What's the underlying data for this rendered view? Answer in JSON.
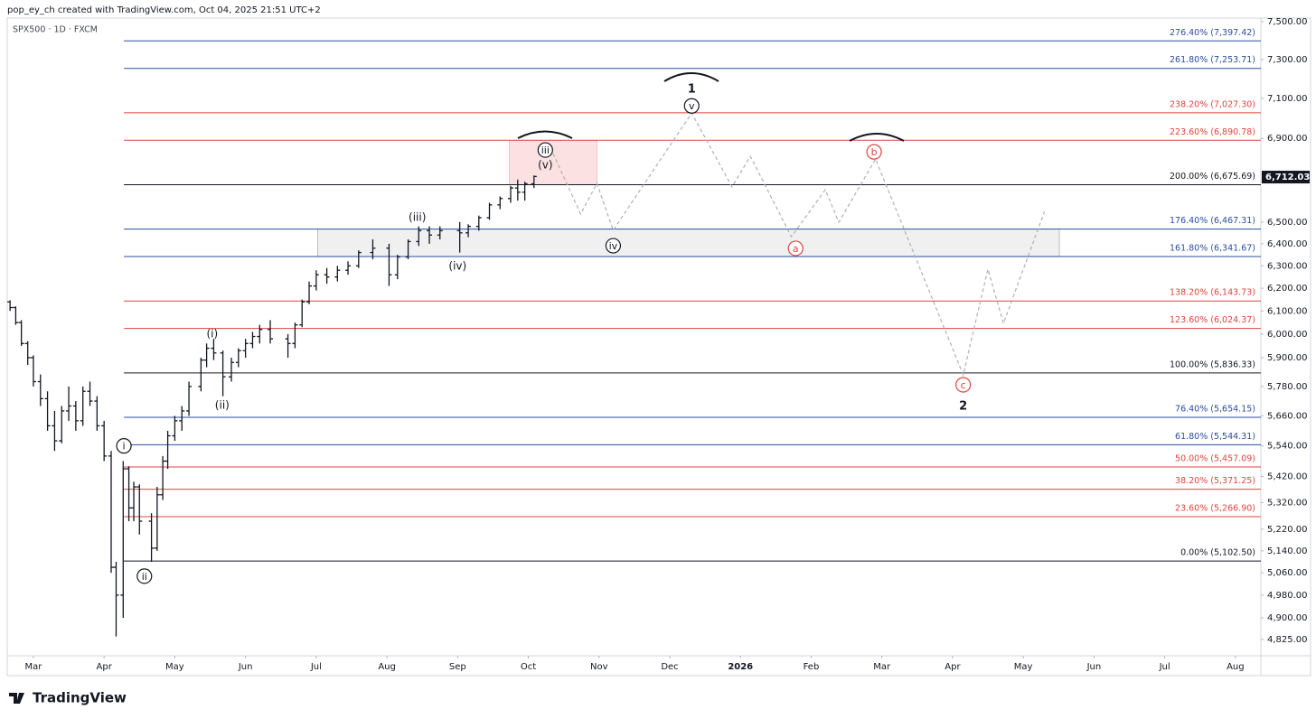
{
  "header": {
    "credit": "pop_ey_ch created with TradingView.com, Oct 04, 2025 21:51 UTC+2"
  },
  "footer": {
    "brand": "TradingView"
  },
  "chart_data": {
    "type": "ohlc",
    "title": "SPX500 · 1D · FXCM",
    "log_scale": true,
    "grid": false,
    "color": "#131722",
    "xlim": [
      1.63,
      19.36
    ],
    "ylim": [
      4769,
      7519
    ],
    "xticks": [
      {
        "value": 2,
        "label": "Mar"
      },
      {
        "value": 3,
        "label": "Apr"
      },
      {
        "value": 4,
        "label": "May"
      },
      {
        "value": 5,
        "label": "Jun"
      },
      {
        "value": 6,
        "label": "Jul"
      },
      {
        "value": 7,
        "label": "Aug"
      },
      {
        "value": 8,
        "label": "Sep"
      },
      {
        "value": 9,
        "label": "Oct"
      },
      {
        "value": 10,
        "label": "Nov"
      },
      {
        "value": 11,
        "label": "Dec"
      },
      {
        "value": 12,
        "label": "2026"
      },
      {
        "value": 13,
        "label": "Feb"
      },
      {
        "value": 14,
        "label": "Mar"
      },
      {
        "value": 15,
        "label": "Apr"
      },
      {
        "value": 16,
        "label": "May"
      },
      {
        "value": 17,
        "label": "Jun"
      },
      {
        "value": 18,
        "label": "Jul"
      },
      {
        "value": 19,
        "label": "Aug"
      }
    ],
    "yticks": [
      {
        "value": 7500,
        "label": "7,500.00"
      },
      {
        "value": 7300,
        "label": "7,300.00"
      },
      {
        "value": 7100,
        "label": "7,100.00"
      },
      {
        "value": 6900,
        "label": "6,900.00"
      },
      {
        "value": 6500,
        "label": "6,500.00"
      },
      {
        "value": 6400,
        "label": "6,400.00"
      },
      {
        "value": 6300,
        "label": "6,300.00"
      },
      {
        "value": 6200,
        "label": "6,200.00"
      },
      {
        "value": 6100,
        "label": "6,100.00"
      },
      {
        "value": 6000,
        "label": "6,000.00"
      },
      {
        "value": 5900,
        "label": "5,900.00"
      },
      {
        "value": 5780,
        "label": "5,780.00"
      },
      {
        "value": 5660,
        "label": "5,660.00"
      },
      {
        "value": 5540,
        "label": "5,540.00"
      },
      {
        "value": 5420,
        "label": "5,420.00"
      },
      {
        "value": 5320,
        "label": "5,320.00"
      },
      {
        "value": 5220,
        "label": "5,220.00"
      },
      {
        "value": 5140,
        "label": "5,140.00"
      },
      {
        "value": 5060,
        "label": "5,060.00"
      },
      {
        "value": 4980,
        "label": "4,980.00"
      },
      {
        "value": 4900,
        "label": "4,900.00"
      },
      {
        "value": 4825,
        "label": "4,825.00"
      }
    ],
    "last_price": {
      "value": 6712.03,
      "label": "6,712.03"
    },
    "x": [
      1.67,
      1.75,
      1.83,
      1.92,
      2.0,
      2.1,
      2.2,
      2.3,
      2.4,
      2.5,
      2.6,
      2.7,
      2.8,
      2.9,
      3.0,
      3.1,
      3.17,
      3.27,
      3.35,
      3.42,
      3.5,
      3.67,
      3.75,
      3.83,
      3.9,
      4.0,
      4.1,
      4.2,
      4.37,
      4.45,
      4.55,
      4.68,
      4.8,
      4.9,
      5.0,
      5.1,
      5.2,
      5.35,
      5.6,
      5.7,
      5.8,
      5.9,
      6.0,
      6.15,
      6.3,
      6.45,
      6.6,
      6.8,
      7.03,
      7.15,
      7.3,
      7.45,
      7.6,
      7.75,
      8.03,
      8.15,
      8.3,
      8.45,
      8.6,
      8.75,
      8.85,
      8.95,
      9.08
    ],
    "open": [
      6140,
      6115,
      6050,
      5960,
      5900,
      5800,
      5730,
      5620,
      5560,
      5680,
      5700,
      5640,
      5760,
      5720,
      5620,
      5500,
      5080,
      4980,
      5450,
      5300,
      5380,
      5250,
      5150,
      5350,
      5480,
      5580,
      5640,
      5680,
      5780,
      5890,
      5940,
      5920,
      5820,
      5880,
      5930,
      5960,
      5990,
      6020,
      5980,
      5960,
      6040,
      6140,
      6210,
      6260,
      6250,
      6280,
      6300,
      6360,
      6380,
      6260,
      6340,
      6410,
      6460,
      6440,
      6460,
      6450,
      6480,
      6520,
      6580,
      6610,
      6660,
      6640,
      6680
    ],
    "high": [
      6147,
      6120,
      6060,
      5970,
      5910,
      5830,
      5760,
      5680,
      5700,
      5780,
      5720,
      5780,
      5800,
      5740,
      5640,
      5520,
      5100,
      5480,
      5460,
      5400,
      5390,
      5280,
      5380,
      5500,
      5600,
      5660,
      5700,
      5800,
      5900,
      5960,
      5980,
      5930,
      5900,
      5940,
      5980,
      6010,
      6040,
      6060,
      6000,
      6050,
      6150,
      6230,
      6280,
      6290,
      6300,
      6320,
      6370,
      6420,
      6400,
      6350,
      6420,
      6480,
      6480,
      6480,
      6500,
      6490,
      6530,
      6590,
      6620,
      6670,
      6700,
      6690,
      6720
    ],
    "low": [
      6100,
      6040,
      5950,
      5870,
      5780,
      5700,
      5600,
      5520,
      5550,
      5640,
      5600,
      5620,
      5700,
      5600,
      5480,
      5060,
      4835,
      4900,
      5250,
      5250,
      5200,
      5100,
      5140,
      5330,
      5450,
      5560,
      5600,
      5660,
      5760,
      5860,
      5890,
      5740,
      5800,
      5860,
      5900,
      5940,
      5960,
      5960,
      5900,
      5940,
      6030,
      6130,
      6190,
      6220,
      6230,
      6260,
      6290,
      6330,
      6210,
      6240,
      6330,
      6390,
      6400,
      6420,
      6360,
      6430,
      6460,
      6510,
      6560,
      6590,
      6600,
      6600,
      6660
    ],
    "close": [
      6115,
      6050,
      5960,
      5900,
      5800,
      5730,
      5620,
      5560,
      5680,
      5700,
      5640,
      5760,
      5720,
      5620,
      5500,
      5080,
      4980,
      5450,
      5300,
      5380,
      5250,
      5150,
      5350,
      5480,
      5580,
      5640,
      5680,
      5780,
      5890,
      5940,
      5920,
      5820,
      5880,
      5930,
      5960,
      5990,
      6020,
      5980,
      5960,
      6040,
      6140,
      6210,
      6260,
      6250,
      6280,
      6300,
      6360,
      6380,
      6260,
      6340,
      6410,
      6460,
      6440,
      6460,
      6450,
      6480,
      6520,
      6580,
      6610,
      6660,
      6640,
      6680,
      6715
    ],
    "fib_start": 3.28,
    "fib_levels": [
      {
        "label": "276.40% (7,397.42)",
        "value": 7397.42,
        "color": "#2a4ea0"
      },
      {
        "label": "261.80% (7,253.71)",
        "value": 7253.71,
        "color": "#2a4ea0"
      },
      {
        "label": "238.20% (7,027.30)",
        "value": 7027.3,
        "color": "#e0453e"
      },
      {
        "label": "223.60% (6,890.78)",
        "value": 6890.78,
        "color": "#e0453e"
      },
      {
        "label": "200.00% (6,675.69)",
        "value": 6675.69,
        "color": "#131722"
      },
      {
        "label": "176.40% (6,467.31)",
        "value": 6467.31,
        "color": "#2a4ea0"
      },
      {
        "label": "161.80% (6,341.67)",
        "value": 6341.67,
        "color": "#2a4ea0"
      },
      {
        "label": "138.20% (6,143.73)",
        "value": 6143.73,
        "color": "#e0453e"
      },
      {
        "label": "123.60% (6,024.37)",
        "value": 6024.37,
        "color": "#e0453e"
      },
      {
        "label": "100.00% (5,836.33)",
        "value": 5836.33,
        "color": "#131722"
      },
      {
        "label": "76.40% (5,654.15)",
        "value": 5654.15,
        "color": "#2a4ea0"
      },
      {
        "label": "61.80% (5,544.31)",
        "value": 5544.31,
        "color": "#2a4ea0"
      },
      {
        "label": "50.00% (5,457.09)",
        "value": 5457.09,
        "color": "#e0453e"
      },
      {
        "label": "38.20% (5,371.25)",
        "value": 5371.25,
        "color": "#e0453e"
      },
      {
        "label": "23.60% (5,266.90)",
        "value": 5266.9,
        "color": "#e0453e"
      },
      {
        "label": "0.00% (5,102.50)",
        "value": 5102.5,
        "color": "#131722"
      }
    ],
    "zones": [
      {
        "x": [
          8.73,
          9.97
        ],
        "y": [
          6675.69,
          6890.78
        ],
        "color": "#f7c9c9"
      },
      {
        "x": [
          6.02,
          16.51
        ],
        "y": [
          6341.67,
          6467.31
        ],
        "color": "#e4e4e4"
      }
    ],
    "projection": {
      "color": "#b0b0b0",
      "x": [
        9.35,
        9.74,
        9.97,
        10.2,
        11.31,
        11.88,
        12.14,
        12.72,
        13.2,
        13.39,
        13.91,
        15.15,
        15.5,
        15.72,
        16.3
      ],
      "y": [
        6826,
        6537,
        6682,
        6462,
        7026,
        6665,
        6812,
        6432,
        6652,
        6499,
        6799,
        5828,
        6285,
        6046,
        6549
      ]
    },
    "annotations": [
      {
        "text": "i",
        "x": 3.28,
        "y": 5540,
        "circled": true,
        "color": "#131722"
      },
      {
        "text": "ii",
        "x": 3.57,
        "y": 5048,
        "circled": true,
        "color": "#131722"
      },
      {
        "text": "(i)",
        "x": 4.53,
        "y": 6004,
        "circled": false,
        "color": "#131722"
      },
      {
        "text": "(ii)",
        "x": 4.67,
        "y": 5706,
        "circled": false,
        "color": "#131722"
      },
      {
        "text": "(iii)",
        "x": 7.43,
        "y": 6524,
        "circled": false,
        "color": "#131722"
      },
      {
        "text": "(iv)",
        "x": 8.0,
        "y": 6301,
        "circled": false,
        "color": "#131722"
      },
      {
        "text": "iii",
        "x": 9.24,
        "y": 6843,
        "circled": true,
        "color": "#131722"
      },
      {
        "text": "(v)",
        "x": 9.24,
        "y": 6773,
        "circled": false,
        "color": "#131722"
      },
      {
        "text": "iv",
        "x": 10.2,
        "y": 6391,
        "circled": true,
        "color": "#131722"
      },
      {
        "text": "1",
        "x": 11.31,
        "y": 7150,
        "circled": false,
        "color": "#131722"
      },
      {
        "text": "v",
        "x": 11.31,
        "y": 7062,
        "circled": true,
        "color": "#131722"
      },
      {
        "text": "a",
        "x": 12.78,
        "y": 6379,
        "circled": true,
        "color": "#e0453e"
      },
      {
        "text": "b",
        "x": 13.89,
        "y": 6834,
        "circled": true,
        "color": "#e0453e"
      },
      {
        "text": "c",
        "x": 15.15,
        "y": 5787,
        "circled": true,
        "color": "#e0453e"
      },
      {
        "text": "2",
        "x": 15.15,
        "y": 5702,
        "circled": false,
        "color": "#131722"
      }
    ]
  }
}
